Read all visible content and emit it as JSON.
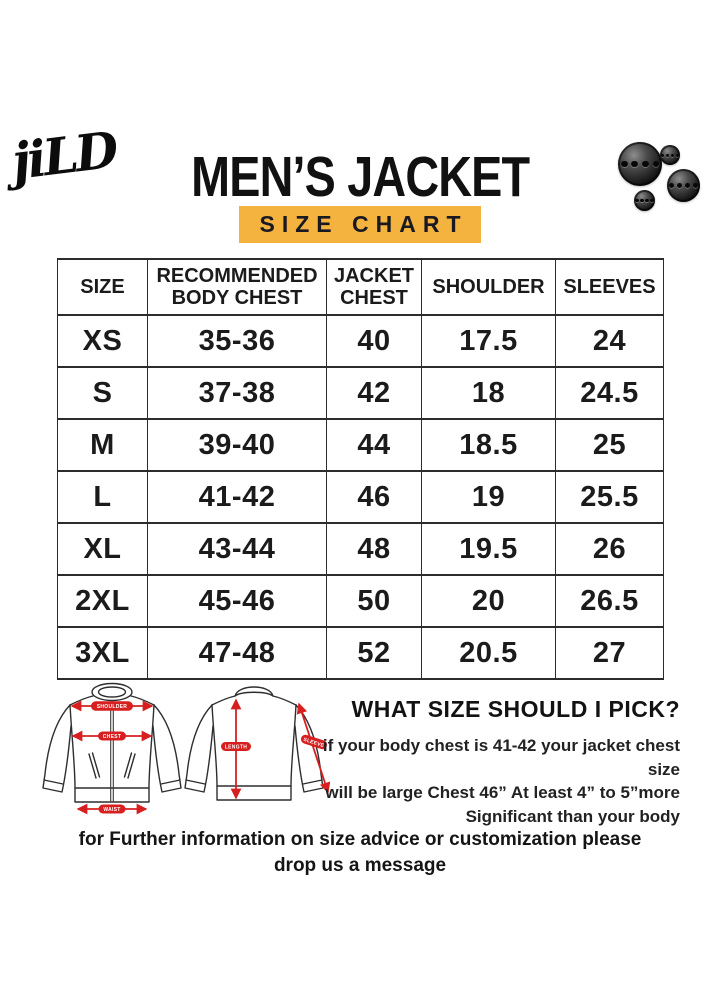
{
  "brand": {
    "logo_text": "jiLD"
  },
  "header": {
    "title": "MEN’S JACKET",
    "subtitle": "SIZE CHART",
    "banner_color": "#F4B23E"
  },
  "decor": {
    "buttons_icon": "jacket-buttons"
  },
  "table": {
    "columns": [
      "SIZE",
      "RECOMMENDED BODY CHEST",
      "JACKET CHEST",
      "SHOULDER",
      "SLEEVES"
    ],
    "rows": [
      [
        "XS",
        "35-36",
        "40",
        "17.5",
        "24"
      ],
      [
        "S",
        "37-38",
        "42",
        "18",
        "24.5"
      ],
      [
        "M",
        "39-40",
        "44",
        "18.5",
        "25"
      ],
      [
        "L",
        "41-42",
        "46",
        "19",
        "25.5"
      ],
      [
        "XL",
        "43-44",
        "48",
        "19.5",
        "26"
      ],
      [
        "2XL",
        "45-46",
        "50",
        "20",
        "26.5"
      ],
      [
        "3XL",
        "47-48",
        "52",
        "20.5",
        "27"
      ]
    ]
  },
  "diagram": {
    "arrow_color": "#D71F1F",
    "front": {
      "labels": {
        "shoulder": "SHOULDER",
        "chest": "CHEST",
        "waist": "WAIST"
      }
    },
    "back": {
      "labels": {
        "length": "LENGTH",
        "sleeve": "SLEEVE"
      }
    }
  },
  "size_help": {
    "heading": "WHAT SIZE SHOULD I PICK?",
    "lines": [
      "if your body chest is 41-42 your jacket chest size",
      "will be large Chest 46” At least 4” to 5”more",
      "Significant than your body"
    ]
  },
  "footer": {
    "lines": [
      "for Further information on size advice or customization please",
      "drop us a message"
    ]
  }
}
